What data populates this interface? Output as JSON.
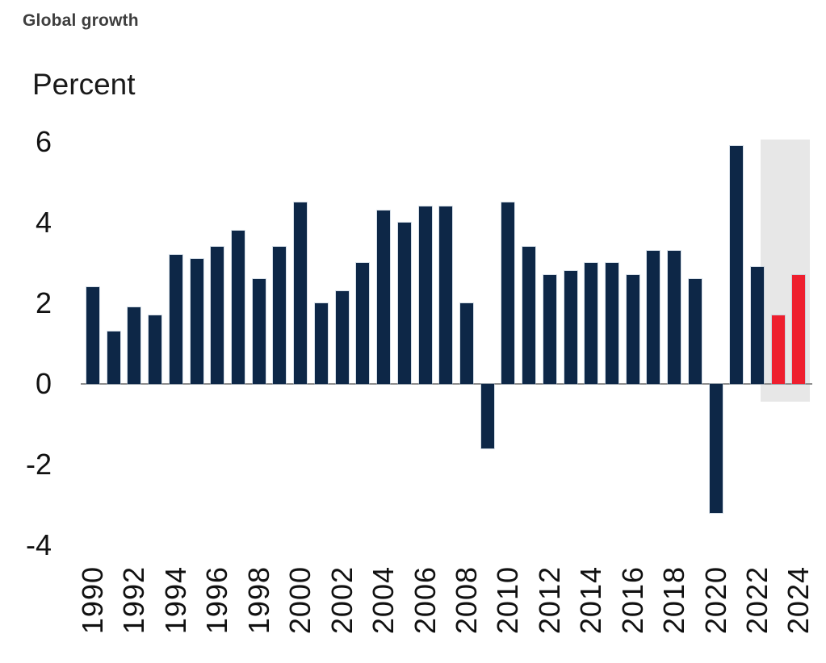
{
  "header": {
    "title": "Global growth"
  },
  "chart_data": {
    "type": "bar",
    "title": "Global growth",
    "ylabel": "Percent",
    "unit_label": "Percent",
    "ylim": [
      -4,
      6
    ],
    "yticks": [
      6,
      4,
      2,
      0,
      -2,
      -4
    ],
    "grid": "off",
    "legend": "none",
    "categories": [
      "1990",
      "1991",
      "1992",
      "1993",
      "1994",
      "1995",
      "1996",
      "1997",
      "1998",
      "1999",
      "2000",
      "2001",
      "2002",
      "2003",
      "2004",
      "2005",
      "2006",
      "2007",
      "2008",
      "2009",
      "2010",
      "2011",
      "2012",
      "2013",
      "2014",
      "2015",
      "2016",
      "2017",
      "2018",
      "2019",
      "2020",
      "2021",
      "2022",
      "2023",
      "2024"
    ],
    "values": [
      2.4,
      1.3,
      1.9,
      1.7,
      3.2,
      3.1,
      3.4,
      3.8,
      2.6,
      3.4,
      4.5,
      2.0,
      2.3,
      3.0,
      4.3,
      4.0,
      4.4,
      4.4,
      2.0,
      -1.6,
      4.5,
      3.4,
      2.7,
      2.8,
      3.0,
      3.0,
      2.7,
      3.3,
      3.3,
      2.6,
      -3.2,
      5.9,
      2.9,
      1.7,
      2.7
    ],
    "forecast_categories": [
      "2023",
      "2024"
    ],
    "x_axis_labels": [
      "1990",
      "1992",
      "1994",
      "1996",
      "1998",
      "2000",
      "2002",
      "2004",
      "2006",
      "2008",
      "2010",
      "2012",
      "2014",
      "2016",
      "2018",
      "2020",
      "2022",
      "2024"
    ],
    "colors": {
      "bar": "#0d2747",
      "forecast_bar": "#ee1f2e",
      "forecast_band": "#e7e7e7",
      "baseline": "#8e8e8e",
      "title_text": "#3e3e3e",
      "axis_text": "#111111"
    }
  }
}
